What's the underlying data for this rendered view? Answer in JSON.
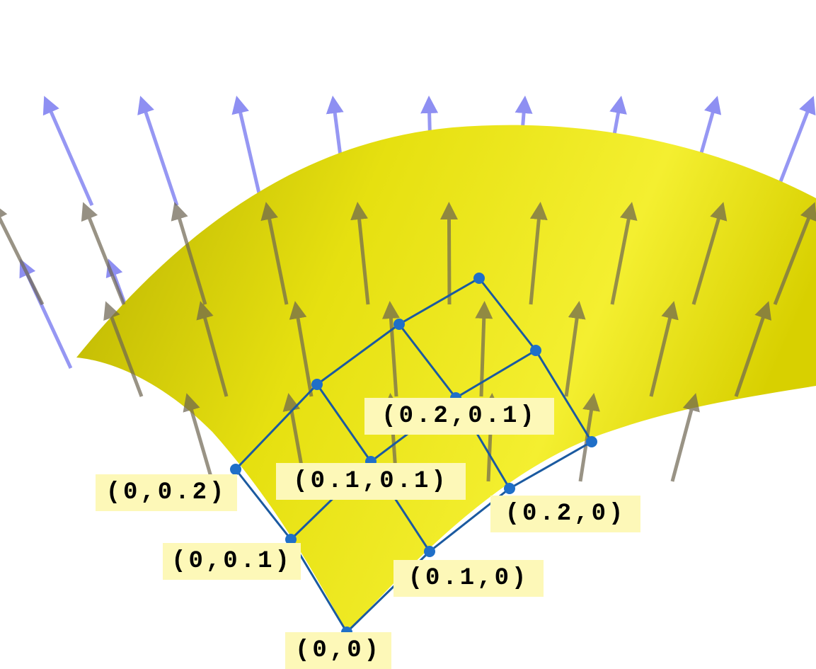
{
  "labels": [
    "(0,0)",
    "(0.1,0)",
    "(0.2,0)",
    "(0,0.1)",
    "(0,0.2)",
    "(0.1,0.1)",
    "(0.2,0.1)"
  ]
}
